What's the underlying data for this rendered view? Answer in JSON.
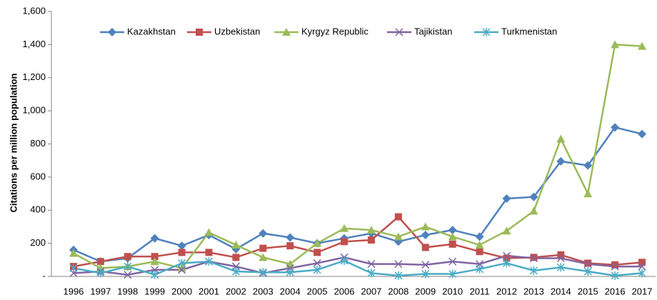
{
  "chart_data": {
    "type": "line",
    "y_label": "Citations per million population",
    "categories": [
      "1996",
      "1997",
      "1998",
      "1999",
      "2000",
      "2001",
      "2002",
      "2003",
      "2004",
      "2005",
      "2006",
      "2007",
      "2008",
      "2009",
      "2010",
      "2011",
      "2012",
      "2013",
      "2014",
      "2015",
      "2016",
      "2017"
    ],
    "series": [
      {
        "name": "Kazakhstan",
        "color": "#4f81bd",
        "marker": "diamond",
        "values": [
          160,
          90,
          110,
          230,
          185,
          250,
          165,
          260,
          235,
          200,
          230,
          260,
          210,
          250,
          280,
          240,
          470,
          480,
          695,
          670,
          900,
          860
        ]
      },
      {
        "name": "Uzbekistan",
        "color": "#c0504d",
        "marker": "square",
        "values": [
          60,
          90,
          120,
          120,
          145,
          145,
          115,
          170,
          185,
          145,
          210,
          220,
          360,
          175,
          195,
          150,
          110,
          115,
          130,
          80,
          70,
          85
        ]
      },
      {
        "name": "Kyrgyz Republic",
        "color": "#9bbb59",
        "marker": "triangle",
        "values": [
          140,
          50,
          60,
          90,
          50,
          265,
          190,
          115,
          75,
          200,
          290,
          280,
          240,
          300,
          240,
          190,
          275,
          395,
          830,
          500,
          1400,
          1390
        ]
      },
      {
        "name": "Tajikistan",
        "color": "#8064a2",
        "marker": "x",
        "values": [
          20,
          30,
          10,
          40,
          40,
          90,
          60,
          20,
          50,
          80,
          115,
          75,
          75,
          70,
          90,
          75,
          125,
          110,
          110,
          75,
          60,
          60
        ]
      },
      {
        "name": "Turkmenistan",
        "color": "#4bacc6",
        "marker": "star",
        "values": [
          50,
          20,
          60,
          10,
          80,
          90,
          30,
          25,
          25,
          40,
          95,
          20,
          5,
          15,
          15,
          45,
          80,
          35,
          55,
          30,
          5,
          20
        ]
      }
    ],
    "ylim": [
      0,
      1600
    ],
    "yticks": [
      {
        "value": 0,
        "label": "-"
      },
      {
        "value": 200,
        "label": "200"
      },
      {
        "value": 400,
        "label": "400"
      },
      {
        "value": 600,
        "label": "600"
      },
      {
        "value": 800,
        "label": "800"
      },
      {
        "value": 1000,
        "label": "1,000"
      },
      {
        "value": 1200,
        "label": "1,200"
      },
      {
        "value": 1400,
        "label": "1,400"
      },
      {
        "value": 1600,
        "label": "1,600"
      }
    ],
    "legend": "top"
  }
}
